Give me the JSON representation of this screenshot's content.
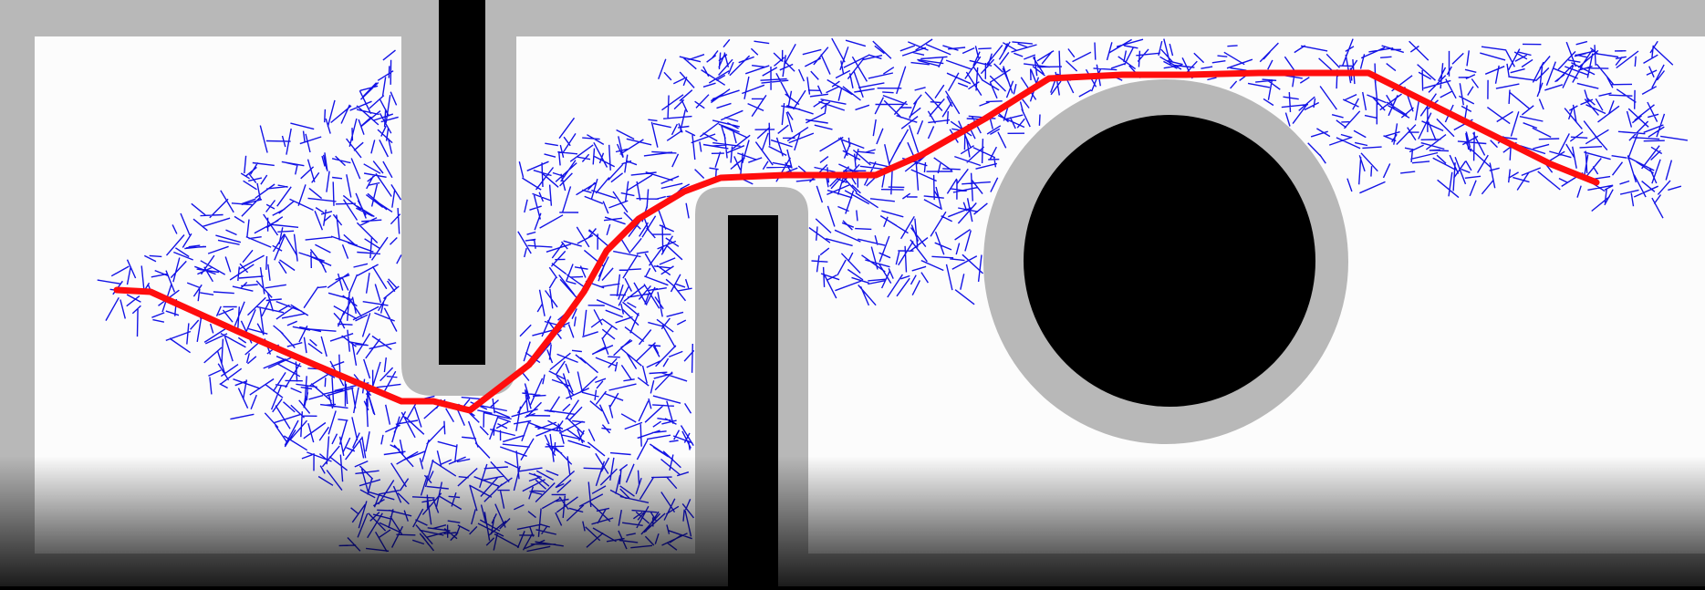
{
  "scene": {
    "description_colors": {
      "free_space": "#fcfcfc",
      "inflation_zone": "#b8b8b8",
      "obstacle": "#000000",
      "tree": "#1414e6",
      "path": "#ff0d0d"
    },
    "obstacles": [
      "top-wall-slot",
      "bottom-wall-slot",
      "round-obstacle"
    ],
    "tree_style": "dense exploration tree",
    "path_style": "solution path"
  }
}
